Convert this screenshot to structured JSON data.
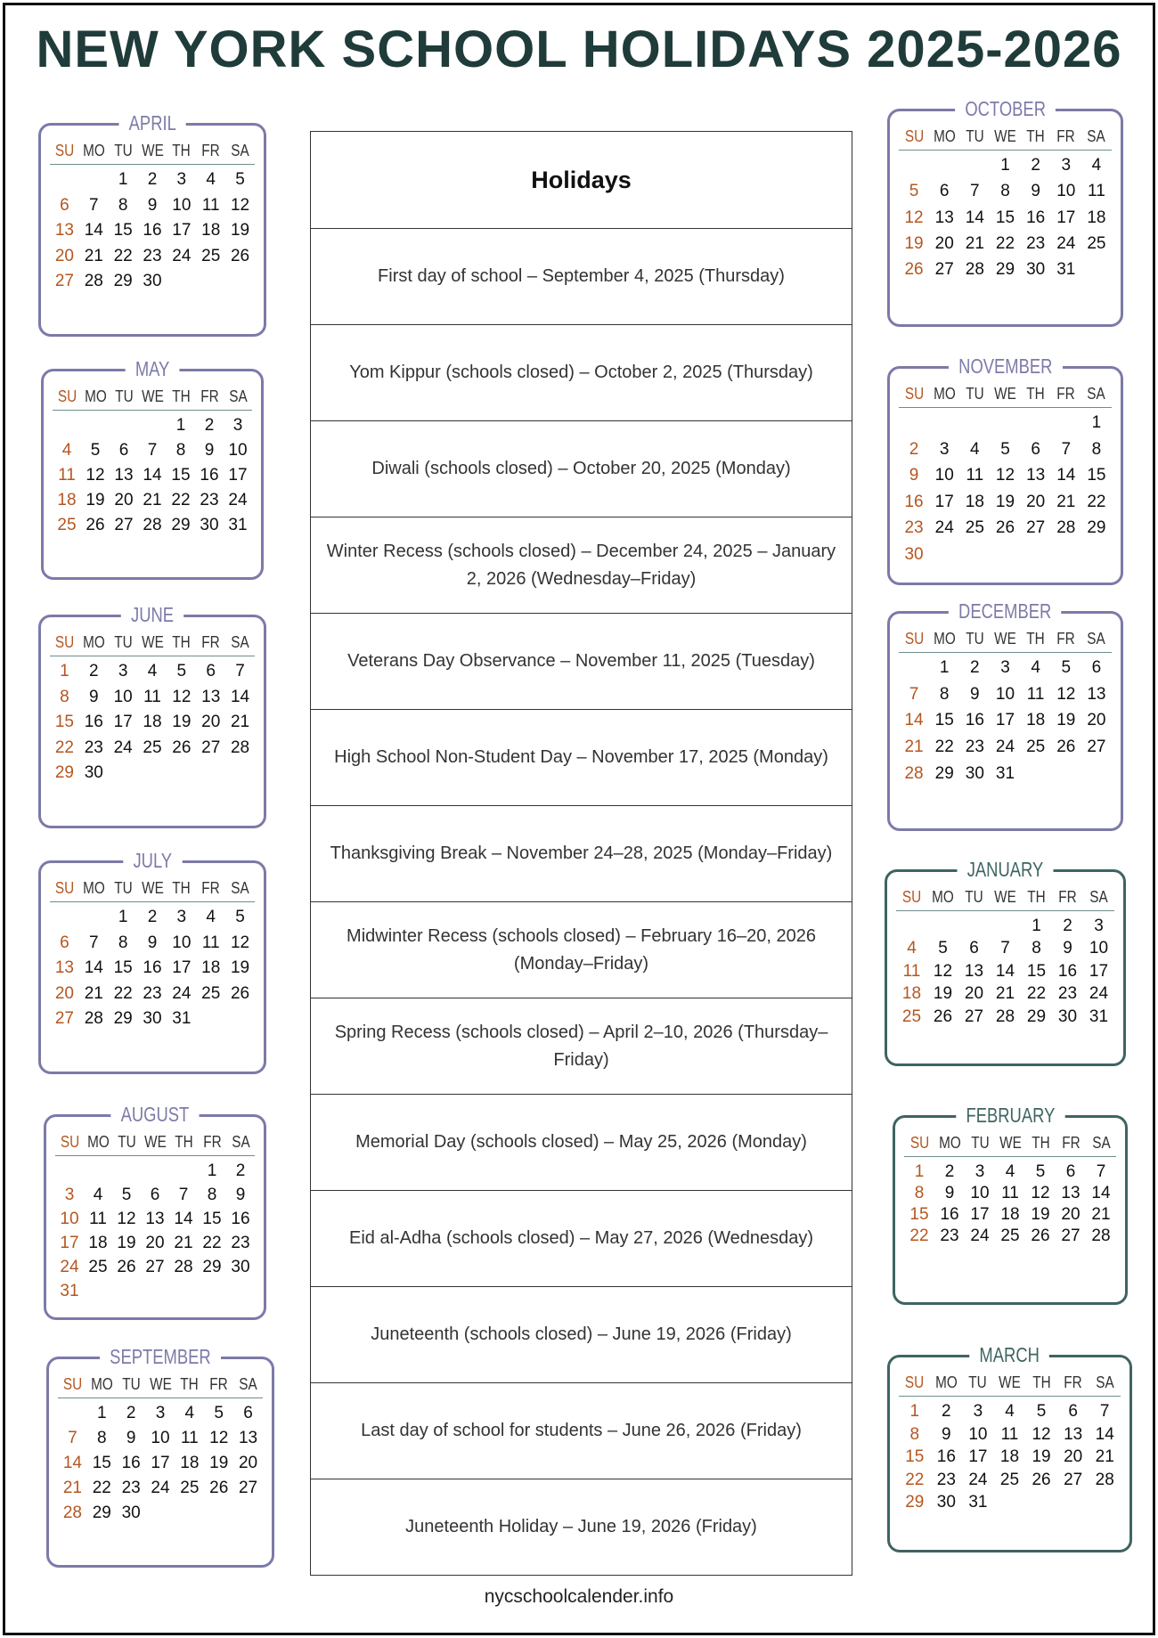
{
  "title": "NEW YORK SCHOOL HOLIDAYS 2025-2026",
  "weekdays": [
    "SU",
    "MO",
    "TU",
    "WE",
    "TH",
    "FR",
    "SA"
  ],
  "table": {
    "header": "Holidays",
    "rows": [
      "First day of school – September 4, 2025 (Thursday)",
      "Yom Kippur (schools closed) – October 2, 2025 (Thursday)",
      "Diwali (schools closed) – October 20, 2025 (Monday)",
      "Winter Recess (schools closed) – December 24, 2025 – January 2, 2026 (Wednesday–Friday)",
      "Veterans Day Observance – November 11, 2025 (Tuesday)",
      "High School Non-Student Day – November 17, 2025 (Monday)",
      "Thanksgiving Break – November 24–28, 2025 (Monday–Friday)",
      "Midwinter Recess (schools closed) – February 16–20, 2026 (Monday–Friday)",
      "Spring Recess (schools closed) – April 2–10, 2026 (Thursday–Friday)",
      "Memorial Day (schools closed) – May 25, 2026 (Monday)",
      "Eid al-Adha (schools closed) – May 27, 2026 (Wednesday)",
      "Juneteenth (schools closed) – June 19, 2026 (Friday)",
      "Last day of school for students – June 26, 2026 (Friday)",
      "Juneteenth Holiday – June 19, 2026 (Friday)"
    ]
  },
  "calendars": [
    {
      "name": "APRIL",
      "color": "#7c7aa8",
      "weeks": [
        [
          null,
          null,
          1,
          2,
          3,
          4,
          5
        ],
        [
          6,
          7,
          8,
          9,
          10,
          11,
          12
        ],
        [
          13,
          14,
          15,
          16,
          17,
          18,
          19
        ],
        [
          20,
          21,
          22,
          23,
          24,
          25,
          26
        ],
        [
          27,
          28,
          29,
          30
        ]
      ]
    },
    {
      "name": "MAY",
      "color": "#7c7aa8",
      "weeks": [
        [
          null,
          null,
          null,
          null,
          1,
          2,
          3
        ],
        [
          4,
          5,
          6,
          7,
          8,
          9,
          10
        ],
        [
          11,
          12,
          13,
          14,
          15,
          16,
          17
        ],
        [
          18,
          19,
          20,
          21,
          22,
          23,
          24
        ],
        [
          25,
          26,
          27,
          28,
          29,
          30,
          31
        ]
      ]
    },
    {
      "name": "JUNE",
      "color": "#7c7aa8",
      "weeks": [
        [
          1,
          2,
          3,
          4,
          5,
          6,
          7
        ],
        [
          8,
          9,
          10,
          11,
          12,
          13,
          14
        ],
        [
          15,
          16,
          17,
          18,
          19,
          20,
          21
        ],
        [
          22,
          23,
          24,
          25,
          26,
          27,
          28
        ],
        [
          29,
          30
        ]
      ]
    },
    {
      "name": "JULY",
      "color": "#7c7aa8",
      "weeks": [
        [
          null,
          null,
          1,
          2,
          3,
          4,
          5
        ],
        [
          6,
          7,
          8,
          9,
          10,
          11,
          12
        ],
        [
          13,
          14,
          15,
          16,
          17,
          18,
          19
        ],
        [
          20,
          21,
          22,
          23,
          24,
          25,
          26
        ],
        [
          27,
          28,
          29,
          30,
          31
        ]
      ]
    },
    {
      "name": "AUGUST",
      "color": "#7c7aa8",
      "weeks": [
        [
          null,
          null,
          null,
          null,
          null,
          1,
          2
        ],
        [
          3,
          4,
          5,
          6,
          7,
          8,
          9
        ],
        [
          10,
          11,
          12,
          13,
          14,
          15,
          16
        ],
        [
          17,
          18,
          19,
          20,
          21,
          22,
          23
        ],
        [
          24,
          25,
          26,
          27,
          28,
          29,
          30
        ],
        [
          31
        ]
      ]
    },
    {
      "name": "SEPTEMBER",
      "color": "#7c7aa8",
      "weeks": [
        [
          null,
          1,
          2,
          3,
          4,
          5,
          6
        ],
        [
          7,
          8,
          9,
          10,
          11,
          12,
          13
        ],
        [
          14,
          15,
          16,
          17,
          18,
          19,
          20
        ],
        [
          21,
          22,
          23,
          24,
          25,
          26,
          27
        ],
        [
          28,
          29,
          30
        ]
      ]
    },
    {
      "name": "OCTOBER",
      "color": "#7c7aa8",
      "weeks": [
        [
          null,
          null,
          null,
          1,
          2,
          3,
          4
        ],
        [
          5,
          6,
          7,
          8,
          9,
          10,
          11
        ],
        [
          12,
          13,
          14,
          15,
          16,
          17,
          18
        ],
        [
          19,
          20,
          21,
          22,
          23,
          24,
          25
        ],
        [
          26,
          27,
          28,
          29,
          30,
          31
        ]
      ]
    },
    {
      "name": "NOVEMBER",
      "color": "#7c7aa8",
      "weeks": [
        [
          null,
          null,
          null,
          null,
          null,
          null,
          1
        ],
        [
          2,
          3,
          4,
          5,
          6,
          7,
          8
        ],
        [
          9,
          10,
          11,
          12,
          13,
          14,
          15
        ],
        [
          16,
          17,
          18,
          19,
          20,
          21,
          22
        ],
        [
          23,
          24,
          25,
          26,
          27,
          28,
          29
        ],
        [
          30
        ]
      ]
    },
    {
      "name": "DECEMBER",
      "color": "#7c7aa8",
      "weeks": [
        [
          null,
          1,
          2,
          3,
          4,
          5,
          6
        ],
        [
          7,
          8,
          9,
          10,
          11,
          12,
          13
        ],
        [
          14,
          15,
          16,
          17,
          18,
          19,
          20
        ],
        [
          21,
          22,
          23,
          24,
          25,
          26,
          27
        ],
        [
          28,
          29,
          30,
          31
        ]
      ]
    },
    {
      "name": "JANUARY",
      "color": "#3e6462",
      "weeks": [
        [
          null,
          null,
          null,
          null,
          1,
          2,
          3
        ],
        [
          4,
          5,
          6,
          7,
          8,
          9,
          10
        ],
        [
          11,
          12,
          13,
          14,
          15,
          16,
          17
        ],
        [
          18,
          19,
          20,
          21,
          22,
          23,
          24
        ],
        [
          25,
          26,
          27,
          28,
          29,
          30,
          31
        ]
      ]
    },
    {
      "name": "FEBRUARY",
      "color": "#3e6462",
      "weeks": [
        [
          1,
          2,
          3,
          4,
          5,
          6,
          7
        ],
        [
          8,
          9,
          10,
          11,
          12,
          13,
          14
        ],
        [
          15,
          16,
          17,
          18,
          19,
          20,
          21
        ],
        [
          22,
          23,
          24,
          25,
          26,
          27,
          28
        ]
      ]
    },
    {
      "name": "MARCH",
      "color": "#3e6462",
      "weeks": [
        [
          1,
          2,
          3,
          4,
          5,
          6,
          7
        ],
        [
          8,
          9,
          10,
          11,
          12,
          13,
          14
        ],
        [
          15,
          16,
          17,
          18,
          19,
          20,
          21
        ],
        [
          22,
          23,
          24,
          25,
          26,
          27,
          28
        ],
        [
          29,
          30,
          31
        ]
      ]
    }
  ],
  "footer": "nycschoolcalender.info"
}
